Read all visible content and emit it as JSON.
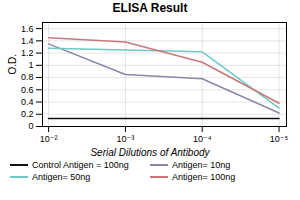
{
  "chart_data": {
    "type": "line",
    "title": "ELISA Result",
    "xlabel": "Serial Dilutions of Antibody",
    "ylabel": "O.D.",
    "x": [
      0.01,
      0.001,
      0.0001,
      1e-05
    ],
    "series": [
      {
        "name": "Control Antigen = 100ng",
        "color": "#111111",
        "values": [
          0.13,
          0.13,
          0.13,
          0.13
        ]
      },
      {
        "name": "Antigen= 10ng",
        "color": "#8888aa",
        "values": [
          1.35,
          0.85,
          0.78,
          0.22
        ]
      },
      {
        "name": "Antigen= 50ng",
        "color": "#70c8c8",
        "values": [
          1.28,
          1.25,
          1.22,
          0.3
        ]
      },
      {
        "name": "Antigen= 100ng",
        "color": "#c87878",
        "values": [
          1.45,
          1.38,
          1.05,
          0.38
        ]
      }
    ],
    "xlim": [
      0.012,
      8e-06
    ],
    "ylim": [
      0,
      1.7
    ],
    "xticks": [
      {
        "value": 0.01,
        "label": "10⁻²"
      },
      {
        "value": 0.001,
        "label": "10⁻³"
      },
      {
        "value": 0.0001,
        "label": "10⁻⁴"
      },
      {
        "value": 1e-05,
        "label": "10⁻⁵"
      }
    ],
    "yticks": [
      0,
      0.2,
      0.4,
      0.6,
      0.8,
      1.0,
      1.2,
      1.4,
      1.6
    ],
    "log": "x",
    "grid": true,
    "legend": "bottom"
  }
}
